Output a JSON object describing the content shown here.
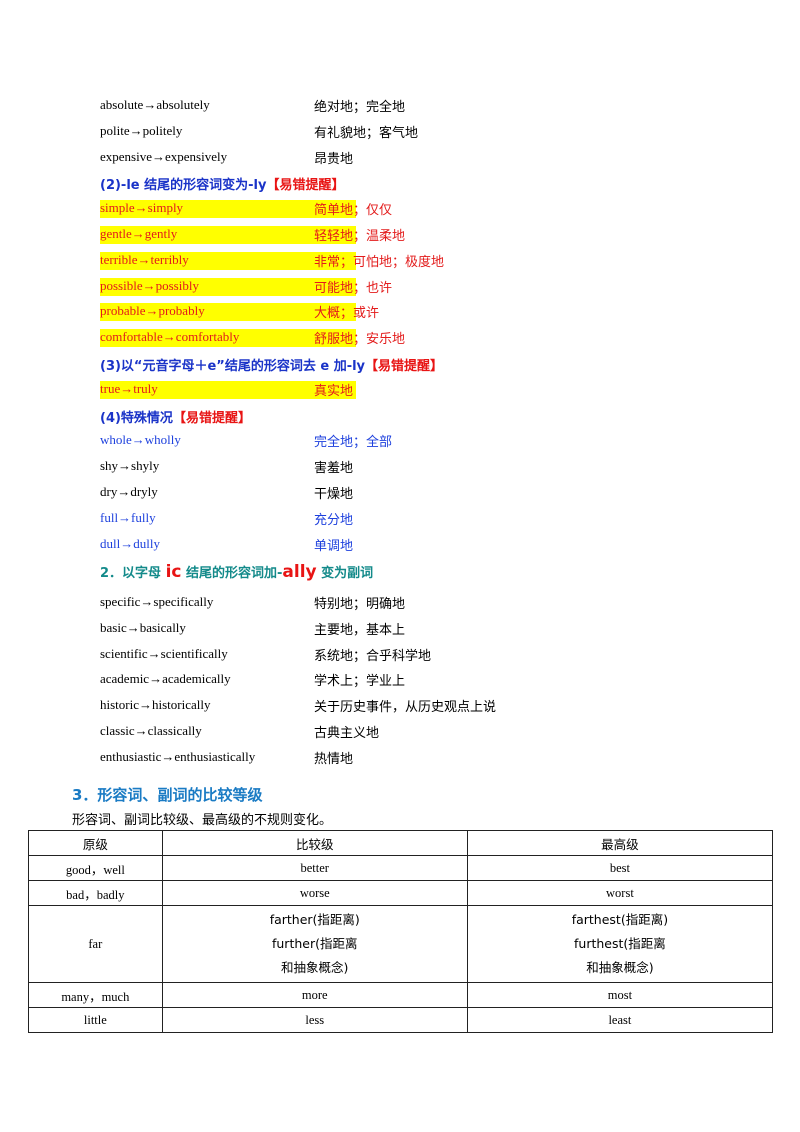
{
  "list1": [
    {
      "type": "item",
      "en": "absolute→absolutely",
      "zh": "绝对地；完全地"
    },
    {
      "type": "item",
      "en": "polite→politely",
      "zh": "有礼貌地；客气地"
    },
    {
      "type": "item",
      "en": "expensive→expensively",
      "zh": "昂贵地"
    },
    {
      "type": "head",
      "text": "(2)-le 结尾的形容词变为-ly",
      "warn": "【易错提醒】"
    },
    {
      "type": "hl",
      "en": "simple→simply",
      "zh": "简单地；仅仅"
    },
    {
      "type": "hl",
      "en": "gentle→gently",
      "zh": "轻轻地；温柔地"
    },
    {
      "type": "hl",
      "en": "terrible→terribly",
      "zh": "非常；可怕地；极度地"
    },
    {
      "type": "hl",
      "en": "possible→possibly",
      "zh": "可能地；也许"
    },
    {
      "type": "hl",
      "en": "probable→probably",
      "zh": "大概；或许"
    },
    {
      "type": "hl",
      "en": "comfortable→comfortably",
      "zh": "舒服地；安乐地"
    },
    {
      "type": "head",
      "text": "(3)以“元音字母＋e”结尾的形容词去 e 加-ly",
      "warn": "【易错提醒】"
    },
    {
      "type": "hl",
      "en": "true→truly",
      "zh": "真实地"
    },
    {
      "type": "head",
      "text": "(4)特殊情况",
      "warn": "【易错提醒】"
    },
    {
      "type": "blue",
      "en": "whole→wholly",
      "zh": "完全地；全部"
    },
    {
      "type": "item",
      "en": "shy→shyly",
      "zh": "害羞地"
    },
    {
      "type": "item",
      "en": "dry→dryly",
      "zh": "干燥地"
    },
    {
      "type": "blue",
      "en": "full→fully",
      "zh": "充分地"
    },
    {
      "type": "blue",
      "en": "dull→dully",
      "zh": "单调地"
    }
  ],
  "section2": {
    "a": "2．以字母 ",
    "b": "ic",
    "c": " 结尾的形容词加-",
    "d": "ally",
    "e": " 变为副词"
  },
  "list2": [
    {
      "en": "specific→specifically",
      "zh": "特别地；明确地"
    },
    {
      "en": "basic→basically",
      "zh": "主要地，基本上"
    },
    {
      "en": "scientific→scientifically",
      "zh": "系统地；合乎科学地"
    },
    {
      "en": "academic→academically",
      "zh": "学术上；学业上"
    },
    {
      "en": "historic→historically",
      "zh": "关于历史事件，从历史观点上说"
    },
    {
      "en": "classic→classically",
      "zh": "古典主义地"
    },
    {
      "en": "enthusiastic→enthusiastically",
      "zh": "热情地"
    }
  ],
  "section3": {
    "title": "3．形容词、副词的比较等级",
    "intro": "形容词、副词比较级、最高级的不规则变化。"
  },
  "table": {
    "headers": [
      "原级",
      "比较级",
      "最高级"
    ],
    "rows": [
      [
        "good，well",
        "better",
        "best"
      ],
      [
        "bad，badly",
        "worse",
        "worst"
      ],
      [
        "far",
        "farther(指距离)|further(指距离|和抽象概念)",
        "farthest(指距离)|furthest(指距离|和抽象概念)"
      ],
      [
        "many，much",
        "more",
        "most"
      ],
      [
        "little",
        "less",
        "least"
      ]
    ]
  }
}
